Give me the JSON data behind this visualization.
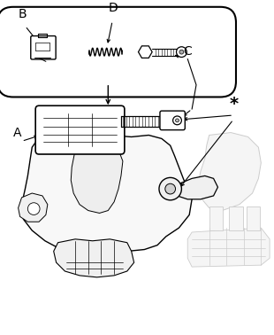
{
  "bg_color": "#ffffff",
  "line_color": "#000000",
  "light_line_color": "#cccccc",
  "mid_line_color": "#888888",
  "label_A": "A",
  "label_B": "B",
  "label_C": "C",
  "label_D": "D",
  "label_star": "*",
  "figsize": [
    3.1,
    3.78
  ],
  "dpi": 100
}
